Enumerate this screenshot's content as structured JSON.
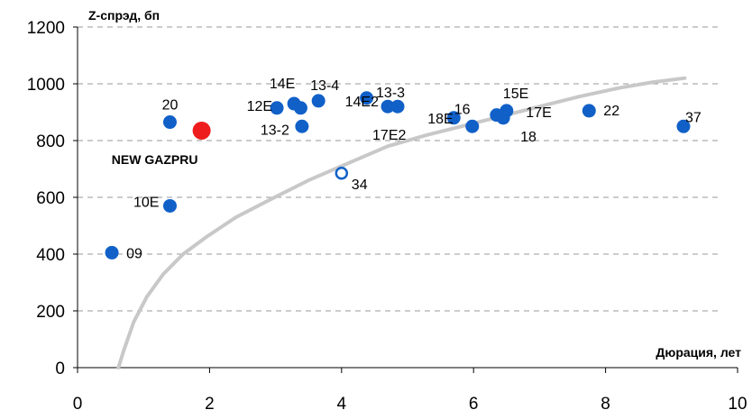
{
  "chart_data": {
    "type": "scatter",
    "ylabel": "Z-спрэд, бп",
    "xlabel": "Дюрация, лет",
    "xlim": [
      0,
      10
    ],
    "ylim": [
      0,
      1200
    ],
    "xticks": [
      "0",
      "2",
      "4",
      "6",
      "8",
      "10"
    ],
    "yticks": [
      "0",
      "200",
      "400",
      "600",
      "800",
      "1000",
      "1200"
    ],
    "grid": "horizontal dashed",
    "colors": {
      "bond": "#1060c8",
      "highlight": "#ee1c1c",
      "curve": "#c8c8c8"
    },
    "points": [
      {
        "label": "09",
        "x": 0.52,
        "y": 405,
        "style": "filled"
      },
      {
        "label": "10E",
        "x": 1.4,
        "y": 570,
        "style": "filled"
      },
      {
        "label": "20",
        "x": 1.4,
        "y": 865,
        "style": "filled"
      },
      {
        "label": "NEW GAZPRU",
        "x": 1.88,
        "y": 835,
        "style": "highlight"
      },
      {
        "label": "12E",
        "x": 3.02,
        "y": 915,
        "style": "filled"
      },
      {
        "label": "14E",
        "x": 3.28,
        "y": 930,
        "style": "filled"
      },
      {
        "label": "",
        "x": 3.38,
        "y": 915,
        "style": "filled"
      },
      {
        "label": "13-2",
        "x": 3.4,
        "y": 850,
        "style": "filled"
      },
      {
        "label": "13-4",
        "x": 3.65,
        "y": 940,
        "style": "filled"
      },
      {
        "label": "34",
        "x": 4.0,
        "y": 685,
        "style": "hollow"
      },
      {
        "label": "14E2",
        "x": 4.38,
        "y": 950,
        "style": "filled"
      },
      {
        "label": "17E2",
        "x": 4.7,
        "y": 920,
        "style": "filled"
      },
      {
        "label": "13-3",
        "x": 4.85,
        "y": 920,
        "style": "filled"
      },
      {
        "label": "18E",
        "x": 5.7,
        "y": 880,
        "style": "filled"
      },
      {
        "label": "16",
        "x": 5.98,
        "y": 850,
        "style": "filled"
      },
      {
        "label": "",
        "x": 6.35,
        "y": 890,
        "style": "filled"
      },
      {
        "label": "18",
        "x": 6.45,
        "y": 880,
        "style": "filled"
      },
      {
        "label": "15E",
        "x": 6.5,
        "y": 905,
        "style": "filled"
      },
      {
        "label": "17E",
        "x": 7.75,
        "y": 905,
        "style": "filled"
      },
      {
        "label": "22",
        "x": 7.75,
        "y": 905,
        "style": "none"
      },
      {
        "label": "37",
        "x": 9.18,
        "y": 850,
        "style": "filled"
      }
    ],
    "curve": [
      [
        0.62,
        0
      ],
      [
        0.7,
        60
      ],
      [
        0.85,
        160
      ],
      [
        1.05,
        250
      ],
      [
        1.3,
        330
      ],
      [
        1.6,
        400
      ],
      [
        1.95,
        460
      ],
      [
        2.4,
        530
      ],
      [
        2.9,
        590
      ],
      [
        3.5,
        660
      ],
      [
        4.1,
        720
      ],
      [
        4.7,
        780
      ],
      [
        5.3,
        820
      ],
      [
        5.9,
        855
      ],
      [
        6.5,
        890
      ],
      [
        7.0,
        920
      ],
      [
        7.6,
        955
      ],
      [
        8.2,
        985
      ],
      [
        8.7,
        1005
      ],
      [
        9.2,
        1020
      ]
    ]
  }
}
